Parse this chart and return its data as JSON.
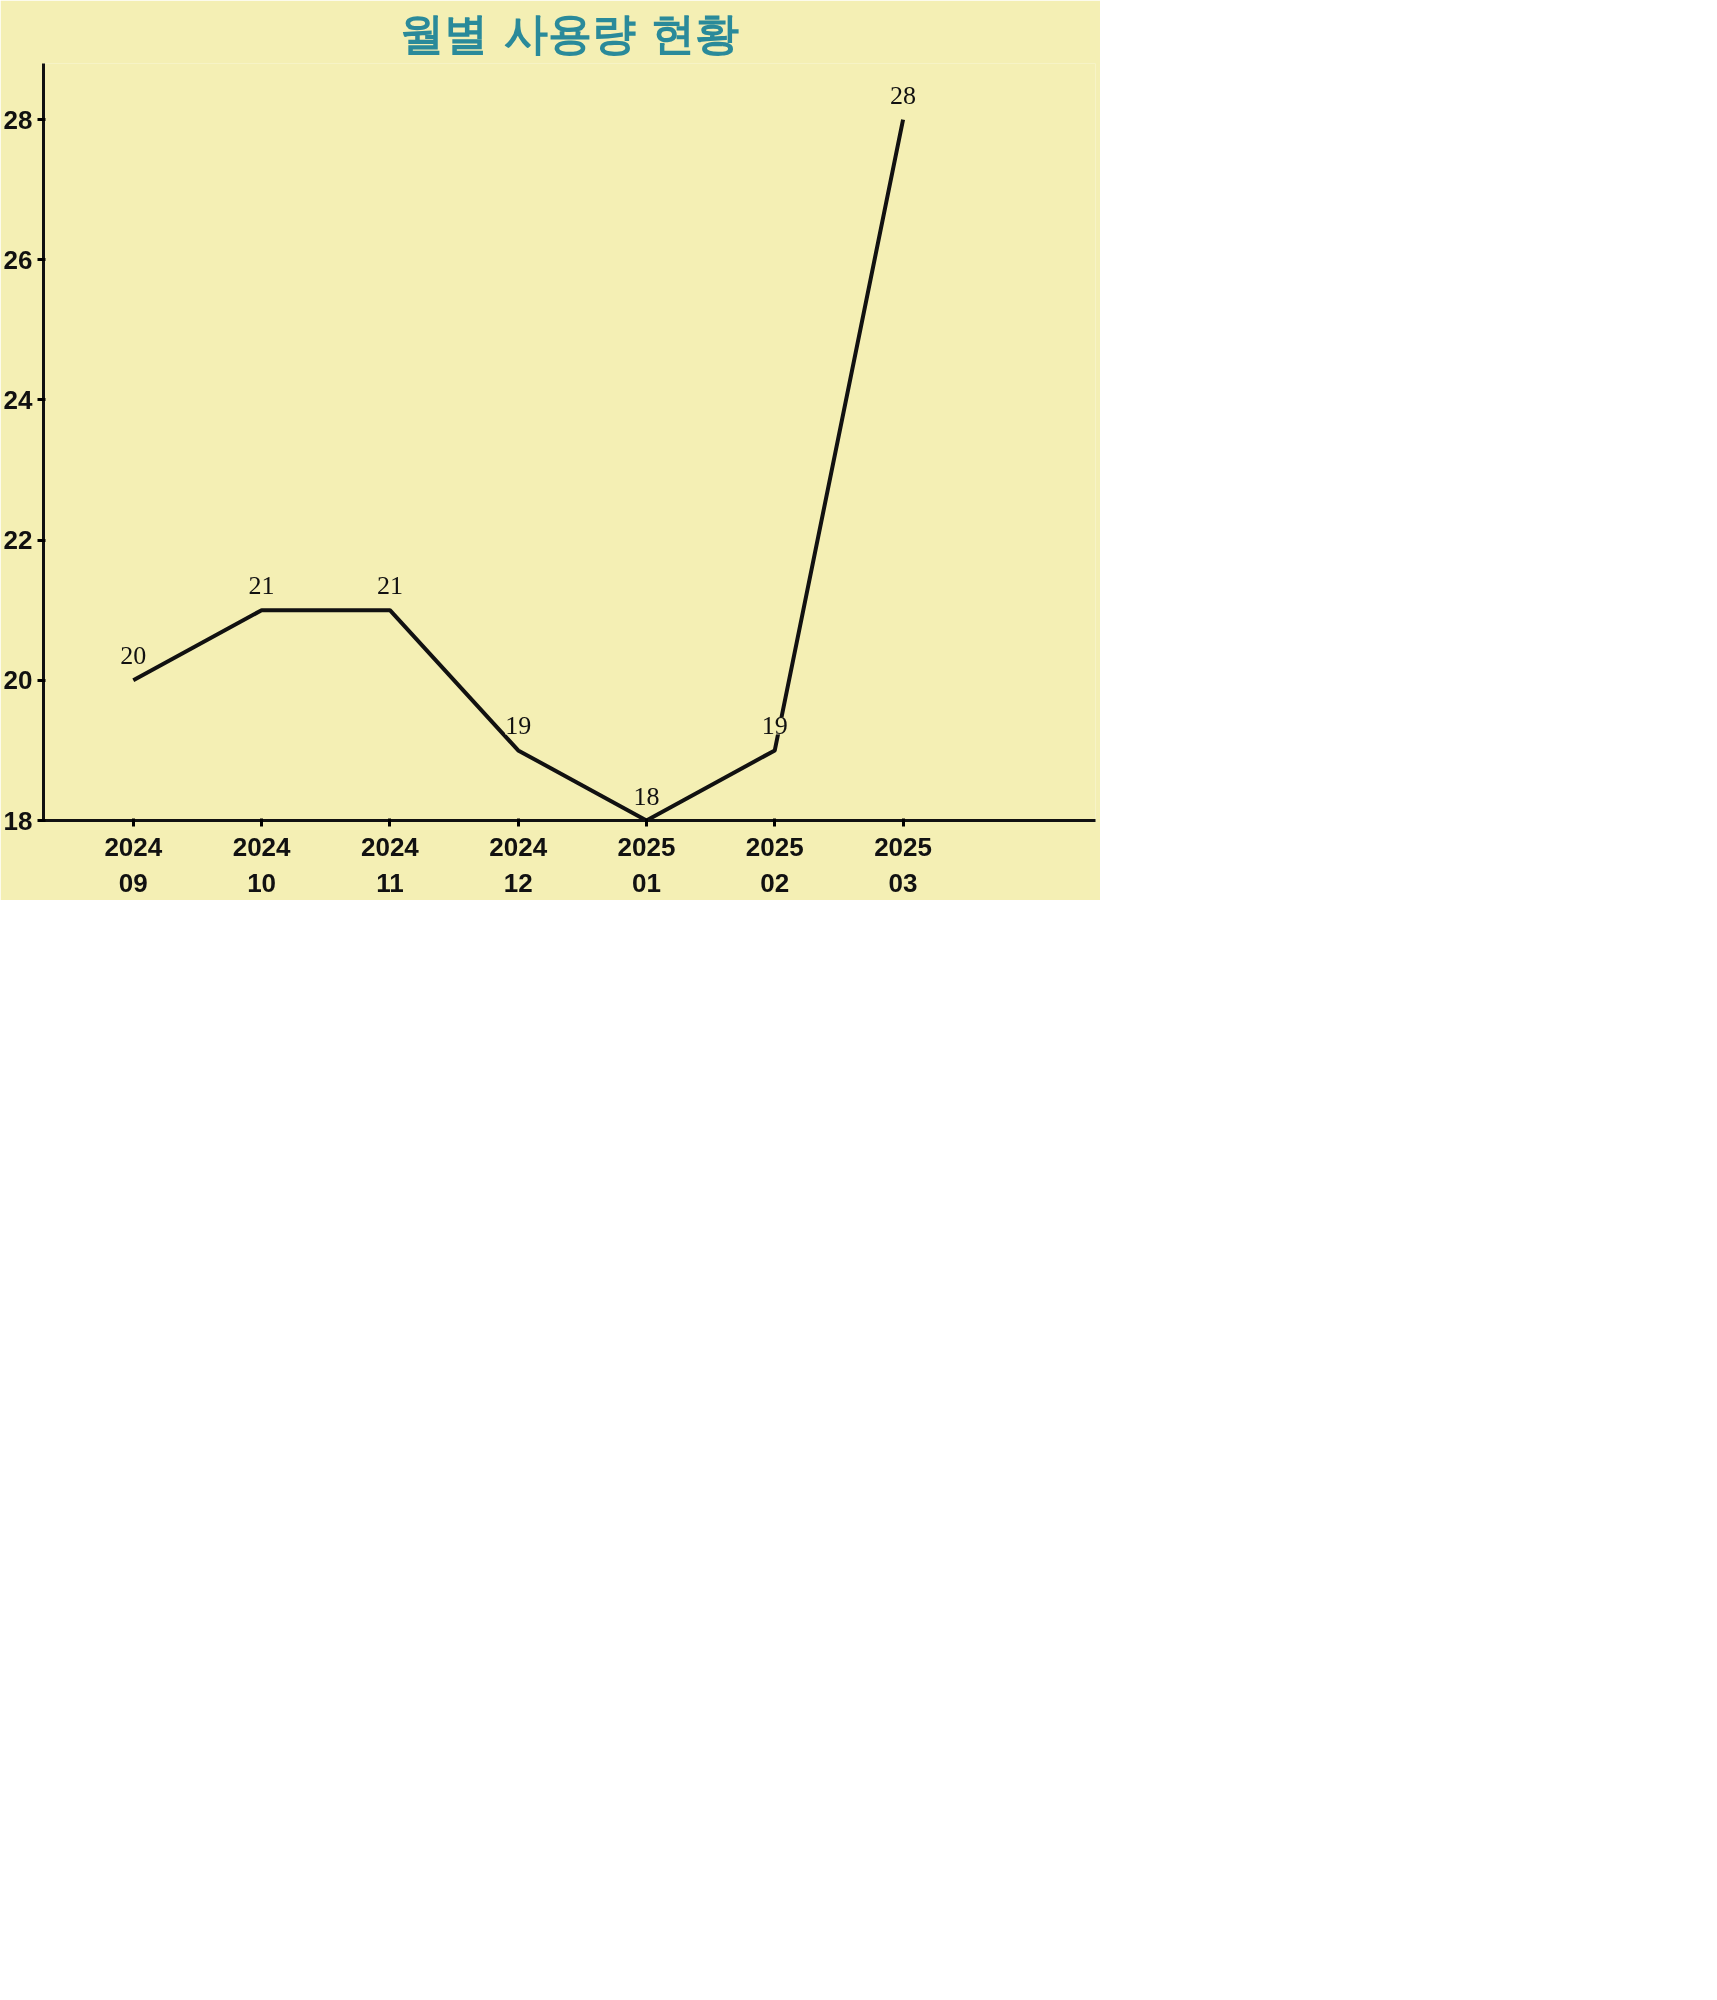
{
  "chart_data": {
    "type": "line",
    "title": "월별 사용량 현황",
    "categories": [
      "2024\n09",
      "2024\n10",
      "2024\n11",
      "2024\n12",
      "2025\n01",
      "2025\n02",
      "2025\n03"
    ],
    "series": [
      {
        "color": "#111111",
        "values": [
          20,
          21,
          21,
          19,
          18,
          19,
          28
        ]
      }
    ],
    "ylim": [
      18,
      28.8
    ],
    "yticks": [
      18,
      20,
      22,
      24,
      26,
      28
    ],
    "data_labels": true,
    "grid": false,
    "marker": "none",
    "line_style": "solid"
  }
}
